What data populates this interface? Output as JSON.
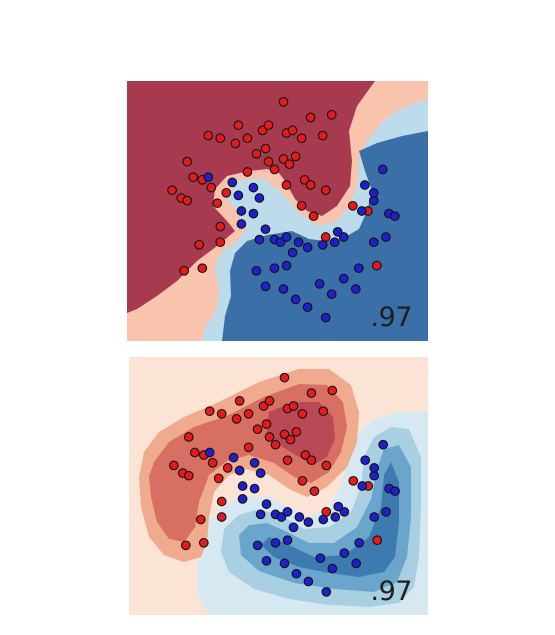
{
  "chart_data": [
    {
      "type": "scatter",
      "title": "",
      "xlabel": "",
      "ylabel": "",
      "annotation": ".97",
      "background": "decision-boundary",
      "colors": {
        "dark_red": "#a83a4f",
        "light_red": "#f8c4ae",
        "light_blue": "#bcdceb",
        "dark_blue": "#3a6fa7",
        "red_point": "#e41a1c",
        "blue_point": "#1f1fcc"
      },
      "series": [
        {
          "values": [
            [
              0.52,
              0.08
            ],
            [
              0.61,
              0.14
            ],
            [
              0.68,
              0.13
            ],
            [
              0.37,
              0.17
            ],
            [
              0.45,
              0.19
            ],
            [
              0.47,
              0.17
            ],
            [
              0.53,
              0.2
            ],
            [
              0.55,
              0.19
            ],
            [
              0.58,
              0.22
            ],
            [
              0.65,
              0.21
            ],
            [
              0.27,
              0.21
            ],
            [
              0.31,
              0.22
            ],
            [
              0.36,
              0.24
            ],
            [
              0.4,
              0.22
            ],
            [
              0.43,
              0.28
            ],
            [
              0.46,
              0.26
            ],
            [
              0.47,
              0.31
            ],
            [
              0.49,
              0.34
            ],
            [
              0.52,
              0.3
            ],
            [
              0.54,
              0.32
            ],
            [
              0.56,
              0.29
            ],
            [
              0.59,
              0.38
            ],
            [
              0.61,
              0.4
            ],
            [
              0.66,
              0.42
            ],
            [
              0.2,
              0.31
            ],
            [
              0.22,
              0.37
            ],
            [
              0.25,
              0.38
            ],
            [
              0.28,
              0.41
            ],
            [
              0.3,
              0.47
            ],
            [
              0.33,
              0.43
            ],
            [
              0.18,
              0.45
            ],
            [
              0.15,
              0.42
            ],
            [
              0.2,
              0.46
            ],
            [
              0.24,
              0.63
            ],
            [
              0.31,
              0.62
            ],
            [
              0.25,
              0.72
            ],
            [
              0.19,
              0.73
            ],
            [
              0.31,
              0.56
            ],
            [
              0.4,
              0.35
            ],
            [
              0.58,
              0.48
            ],
            [
              0.62,
              0.52
            ],
            [
              0.53,
              0.4
            ],
            [
              0.75,
              0.48
            ],
            [
              0.66,
              0.6
            ],
            [
              0.8,
              0.5
            ],
            [
              0.83,
              0.71
            ]
          ],
          "color": "red"
        },
        {
          "values": [
            [
              0.27,
              0.37
            ],
            [
              0.35,
              0.39
            ],
            [
              0.37,
              0.44
            ],
            [
              0.42,
              0.41
            ],
            [
              0.44,
              0.45
            ],
            [
              0.38,
              0.5
            ],
            [
              0.42,
              0.51
            ],
            [
              0.46,
              0.57
            ],
            [
              0.38,
              0.55
            ],
            [
              0.44,
              0.61
            ],
            [
              0.49,
              0.61
            ],
            [
              0.51,
              0.62
            ],
            [
              0.53,
              0.6
            ],
            [
              0.57,
              0.62
            ],
            [
              0.6,
              0.64
            ],
            [
              0.65,
              0.63
            ],
            [
              0.69,
              0.62
            ],
            [
              0.72,
              0.6
            ],
            [
              0.55,
              0.66
            ],
            [
              0.53,
              0.71
            ],
            [
              0.49,
              0.72
            ],
            [
              0.43,
              0.73
            ],
            [
              0.46,
              0.79
            ],
            [
              0.52,
              0.8
            ],
            [
              0.56,
              0.84
            ],
            [
              0.64,
              0.78
            ],
            [
              0.68,
              0.82
            ],
            [
              0.72,
              0.76
            ],
            [
              0.77,
              0.72
            ],
            [
              0.76,
              0.8
            ],
            [
              0.82,
              0.62
            ],
            [
              0.86,
              0.6
            ],
            [
              0.87,
              0.51
            ],
            [
              0.82,
              0.46
            ],
            [
              0.79,
              0.4
            ],
            [
              0.85,
              0.34
            ],
            [
              0.82,
              0.43
            ],
            [
              0.89,
              0.52
            ],
            [
              0.66,
              0.91
            ],
            [
              0.6,
              0.87
            ],
            [
              0.7,
              0.58
            ],
            [
              0.78,
              0.5
            ]
          ],
          "color": "blue"
        }
      ]
    },
    {
      "type": "scatter",
      "title": "",
      "xlabel": "",
      "ylabel": "",
      "annotation": ".97",
      "background": "decision-function-contours",
      "colors": {
        "dark_red": "#b94a55",
        "mid_red": "#d86f63",
        "light_red": "#f0aa8d",
        "faint_red": "#fbe3d6",
        "faint_blue": "#d6e9f2",
        "light_blue": "#a9cfe3",
        "mid_blue": "#6aa6cc",
        "dark_blue": "#3d7ab0",
        "red_point": "#e41a1c",
        "blue_point": "#1f1fcc"
      },
      "series": [
        {
          "values": [
            [
              0.52,
              0.08
            ],
            [
              0.61,
              0.14
            ],
            [
              0.68,
              0.13
            ],
            [
              0.37,
              0.17
            ],
            [
              0.45,
              0.19
            ],
            [
              0.47,
              0.17
            ],
            [
              0.53,
              0.2
            ],
            [
              0.55,
              0.19
            ],
            [
              0.58,
              0.22
            ],
            [
              0.65,
              0.21
            ],
            [
              0.27,
              0.21
            ],
            [
              0.31,
              0.22
            ],
            [
              0.36,
              0.24
            ],
            [
              0.4,
              0.22
            ],
            [
              0.43,
              0.28
            ],
            [
              0.46,
              0.26
            ],
            [
              0.47,
              0.31
            ],
            [
              0.49,
              0.34
            ],
            [
              0.52,
              0.3
            ],
            [
              0.54,
              0.32
            ],
            [
              0.56,
              0.29
            ],
            [
              0.59,
              0.38
            ],
            [
              0.61,
              0.4
            ],
            [
              0.66,
              0.42
            ],
            [
              0.2,
              0.31
            ],
            [
              0.22,
              0.37
            ],
            [
              0.25,
              0.38
            ],
            [
              0.28,
              0.41
            ],
            [
              0.3,
              0.47
            ],
            [
              0.33,
              0.43
            ],
            [
              0.18,
              0.45
            ],
            [
              0.15,
              0.42
            ],
            [
              0.2,
              0.46
            ],
            [
              0.24,
              0.63
            ],
            [
              0.31,
              0.62
            ],
            [
              0.25,
              0.72
            ],
            [
              0.19,
              0.73
            ],
            [
              0.31,
              0.56
            ],
            [
              0.4,
              0.35
            ],
            [
              0.58,
              0.48
            ],
            [
              0.62,
              0.52
            ],
            [
              0.53,
              0.4
            ],
            [
              0.75,
              0.48
            ],
            [
              0.66,
              0.6
            ],
            [
              0.8,
              0.5
            ],
            [
              0.83,
              0.71
            ]
          ],
          "color": "red"
        },
        {
          "values": [
            [
              0.27,
              0.37
            ],
            [
              0.35,
              0.39
            ],
            [
              0.37,
              0.44
            ],
            [
              0.42,
              0.41
            ],
            [
              0.44,
              0.45
            ],
            [
              0.38,
              0.5
            ],
            [
              0.42,
              0.51
            ],
            [
              0.46,
              0.57
            ],
            [
              0.38,
              0.55
            ],
            [
              0.44,
              0.61
            ],
            [
              0.49,
              0.61
            ],
            [
              0.51,
              0.62
            ],
            [
              0.53,
              0.6
            ],
            [
              0.57,
              0.62
            ],
            [
              0.6,
              0.64
            ],
            [
              0.65,
              0.63
            ],
            [
              0.69,
              0.62
            ],
            [
              0.72,
              0.6
            ],
            [
              0.55,
              0.66
            ],
            [
              0.53,
              0.71
            ],
            [
              0.49,
              0.72
            ],
            [
              0.43,
              0.73
            ],
            [
              0.46,
              0.79
            ],
            [
              0.52,
              0.8
            ],
            [
              0.56,
              0.84
            ],
            [
              0.64,
              0.78
            ],
            [
              0.68,
              0.82
            ],
            [
              0.72,
              0.76
            ],
            [
              0.77,
              0.72
            ],
            [
              0.76,
              0.8
            ],
            [
              0.82,
              0.62
            ],
            [
              0.86,
              0.6
            ],
            [
              0.87,
              0.51
            ],
            [
              0.82,
              0.46
            ],
            [
              0.79,
              0.4
            ],
            [
              0.85,
              0.34
            ],
            [
              0.82,
              0.43
            ],
            [
              0.89,
              0.52
            ],
            [
              0.66,
              0.91
            ],
            [
              0.6,
              0.87
            ],
            [
              0.7,
              0.58
            ],
            [
              0.78,
              0.5
            ]
          ],
          "color": "blue"
        }
      ]
    }
  ]
}
